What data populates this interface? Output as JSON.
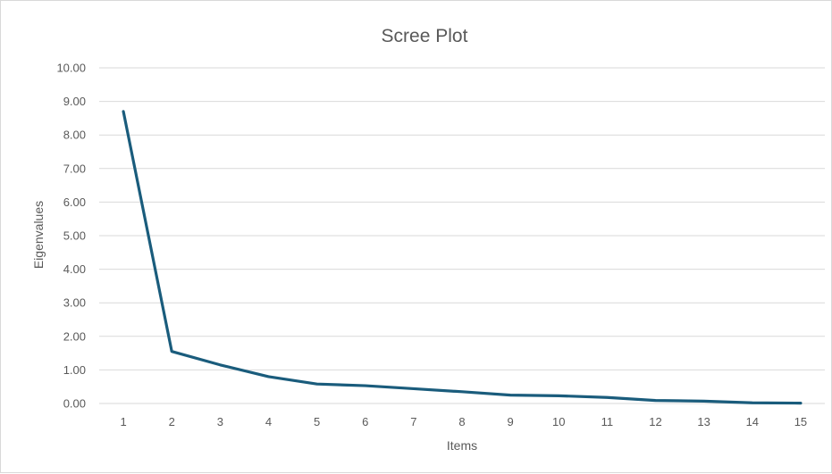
{
  "chart_data": {
    "type": "line",
    "title": "Scree Plot",
    "xlabel": "Items",
    "ylabel": "Eigenvalues",
    "categories": [
      "1",
      "2",
      "3",
      "4",
      "5",
      "6",
      "7",
      "8",
      "9",
      "10",
      "11",
      "12",
      "13",
      "14",
      "15"
    ],
    "series": [
      {
        "values": [
          8.7,
          1.55,
          1.15,
          0.8,
          0.58,
          0.53,
          0.44,
          0.35,
          0.25,
          0.23,
          0.18,
          0.09,
          0.07,
          0.02,
          0.01
        ]
      }
    ],
    "ylim": [
      0,
      10
    ],
    "y_ticks": [
      "0.00",
      "1.00",
      "2.00",
      "3.00",
      "4.00",
      "5.00",
      "6.00",
      "7.00",
      "8.00",
      "9.00",
      "10.00"
    ],
    "grid": true,
    "legend": "none",
    "line_color": "#1a5c7c"
  }
}
